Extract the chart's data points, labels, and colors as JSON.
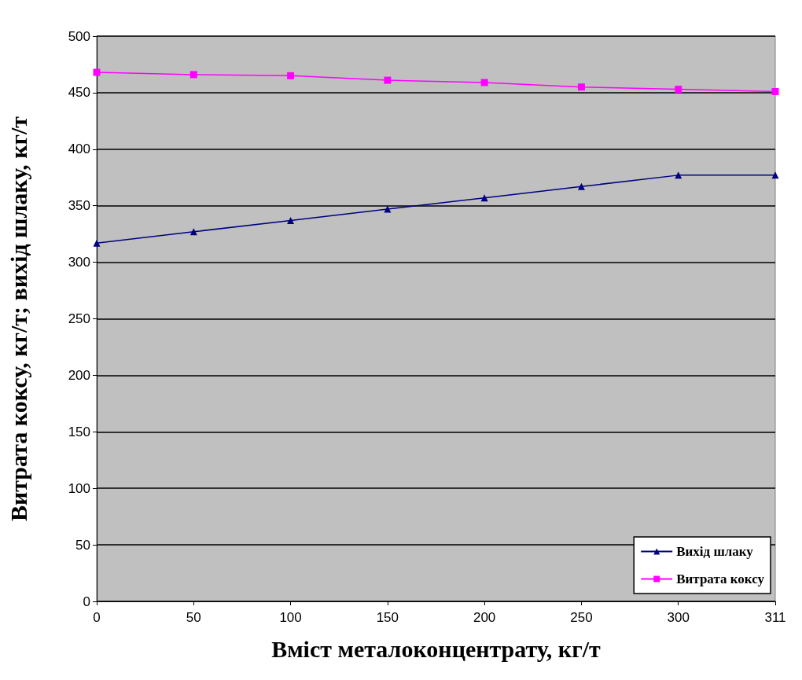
{
  "chart_data": {
    "type": "line",
    "xlabel": "Вміст металоконцентрату, кг/т",
    "ylabel": "Витрата коксу, кг/т; вихід шлаку, кг/т",
    "categories": [
      "0",
      "50",
      "100",
      "150",
      "200",
      "250",
      "300",
      "311"
    ],
    "series": [
      {
        "name": "Вихід шлаку",
        "color": "#000080",
        "marker": "triangle",
        "values": [
          317,
          327,
          337,
          347,
          357,
          367,
          377,
          377
        ]
      },
      {
        "name": "Витрата коксу",
        "color": "#ff00ff",
        "marker": "square",
        "values": [
          468,
          466,
          465,
          461,
          459,
          455,
          453,
          451
        ]
      }
    ],
    "ylim": [
      0,
      500
    ],
    "yticks": [
      0,
      50,
      100,
      150,
      200,
      250,
      300,
      350,
      400,
      450,
      500
    ],
    "grid": "y",
    "legend": "bottom right"
  }
}
